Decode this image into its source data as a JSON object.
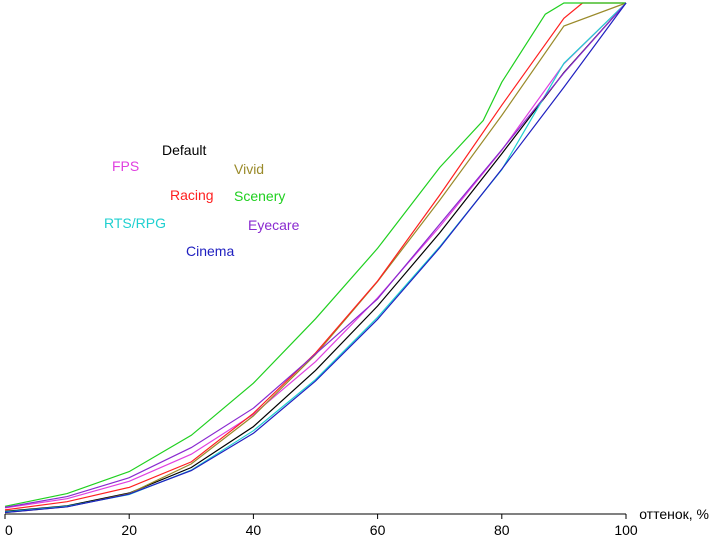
{
  "chart_data": {
    "type": "line",
    "title": "",
    "xlabel": "оттенок, %",
    "ylabel": "",
    "xlim": [
      0,
      100
    ],
    "ylim": [
      0,
      100
    ],
    "x_ticks": [
      "0",
      "20",
      "40",
      "60",
      "80",
      "100"
    ],
    "grid": false,
    "legend_placement": "upper-left inside plot",
    "series": [
      {
        "name": "Default",
        "color": "#000000",
        "x": [
          0,
          10,
          20,
          30,
          40,
          50,
          60,
          70,
          80,
          90,
          100
        ],
        "y": [
          0.5,
          1.6,
          4.1,
          9.1,
          17.1,
          28.1,
          40.7,
          55.0,
          70.5,
          86.4,
          100
        ]
      },
      {
        "name": "FPS",
        "color": "#e040e0",
        "x": [
          0,
          10,
          20,
          30,
          40,
          50,
          60,
          70,
          80,
          90,
          100
        ],
        "y": [
          1.2,
          3.0,
          6.4,
          11.7,
          19.5,
          29.8,
          42.3,
          56.2,
          71.2,
          88.1,
          100
        ]
      },
      {
        "name": "Vivid",
        "color": "#9a8a2a",
        "x": [
          0,
          10,
          20,
          30,
          40,
          50,
          60,
          70,
          80,
          90,
          100
        ],
        "y": [
          0.3,
          1.4,
          4.0,
          9.8,
          19.2,
          31.2,
          45.5,
          61.4,
          78.0,
          95.5,
          100
        ]
      },
      {
        "name": "Racing",
        "color": "#ff2020",
        "x": [
          0,
          10,
          20,
          30,
          40,
          50,
          60,
          70,
          80,
          90,
          93,
          100
        ],
        "y": [
          0.8,
          2.4,
          5.2,
          10.2,
          19.7,
          31.5,
          45.6,
          62.4,
          80.0,
          97.0,
          100,
          100
        ]
      },
      {
        "name": "Scenery",
        "color": "#20d020",
        "x": [
          0,
          10,
          20,
          30,
          40,
          50,
          60,
          70,
          77,
          80,
          87,
          90,
          100
        ],
        "y": [
          1.5,
          4.0,
          8.3,
          15.4,
          25.6,
          38.2,
          52.0,
          67.8,
          77.0,
          84.5,
          97.8,
          100,
          100
        ]
      },
      {
        "name": "RTS/RPG",
        "color": "#20d0d0",
        "x": [
          0,
          10,
          20,
          30,
          40,
          50,
          60,
          70,
          80,
          90,
          100
        ],
        "y": [
          0.4,
          1.5,
          3.8,
          8.6,
          16.3,
          26.3,
          38.5,
          52.3,
          67.4,
          88.2,
          100
        ]
      },
      {
        "name": "Eyecare",
        "color": "#8a2ad0",
        "x": [
          0,
          10,
          20,
          30,
          40,
          50,
          60,
          70,
          80,
          90,
          100
        ],
        "y": [
          1.3,
          3.4,
          7.1,
          13.0,
          20.7,
          31.3,
          42.1,
          56.7,
          71.3,
          86.3,
          100
        ]
      },
      {
        "name": "Cinema",
        "color": "#2020c0",
        "x": [
          0,
          10,
          20,
          30,
          40,
          50,
          60,
          70,
          80,
          90,
          100
        ],
        "y": [
          0.3,
          1.4,
          3.9,
          8.5,
          15.8,
          26.0,
          38.1,
          52.1,
          67.5,
          83.5,
          100
        ]
      }
    ]
  }
}
